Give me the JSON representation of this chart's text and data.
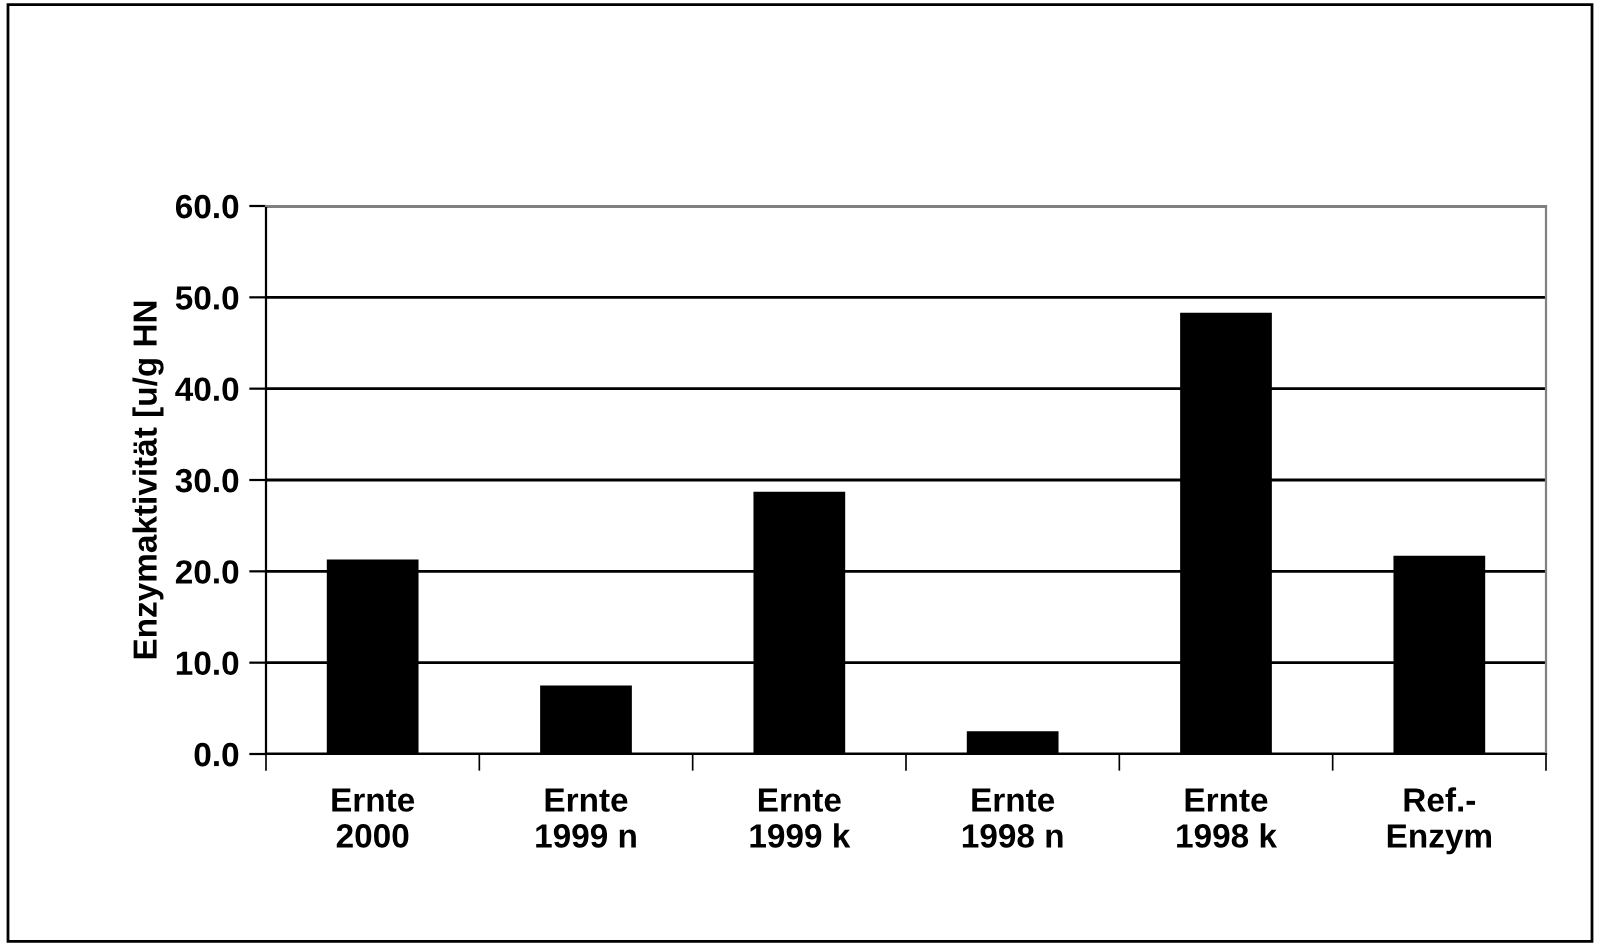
{
  "chart_data": {
    "type": "bar",
    "ylabel": "Enzymaktivität [u/g HN",
    "categories": [
      "Ernte\n2000",
      "Ernte\n1999 n",
      "Ernte\n1999 k",
      "Ernte\n1998 n",
      "Ernte\n1998 k",
      "Ref.-\nEnzym"
    ],
    "values": [
      21.3,
      7.5,
      28.7,
      2.5,
      48.3,
      21.7
    ],
    "color": "#000000",
    "ylim": [
      0,
      60
    ],
    "yticks": [
      {
        "value": 0,
        "label": "0.0"
      },
      {
        "value": 10,
        "label": "10.0"
      },
      {
        "value": 20,
        "label": "20.0"
      },
      {
        "value": 30,
        "label": "30.0"
      },
      {
        "value": 40,
        "label": "40.0"
      },
      {
        "value": 50,
        "label": "50.0"
      },
      {
        "value": 60,
        "label": "60.0"
      }
    ],
    "grid": "y",
    "legend": false
  }
}
